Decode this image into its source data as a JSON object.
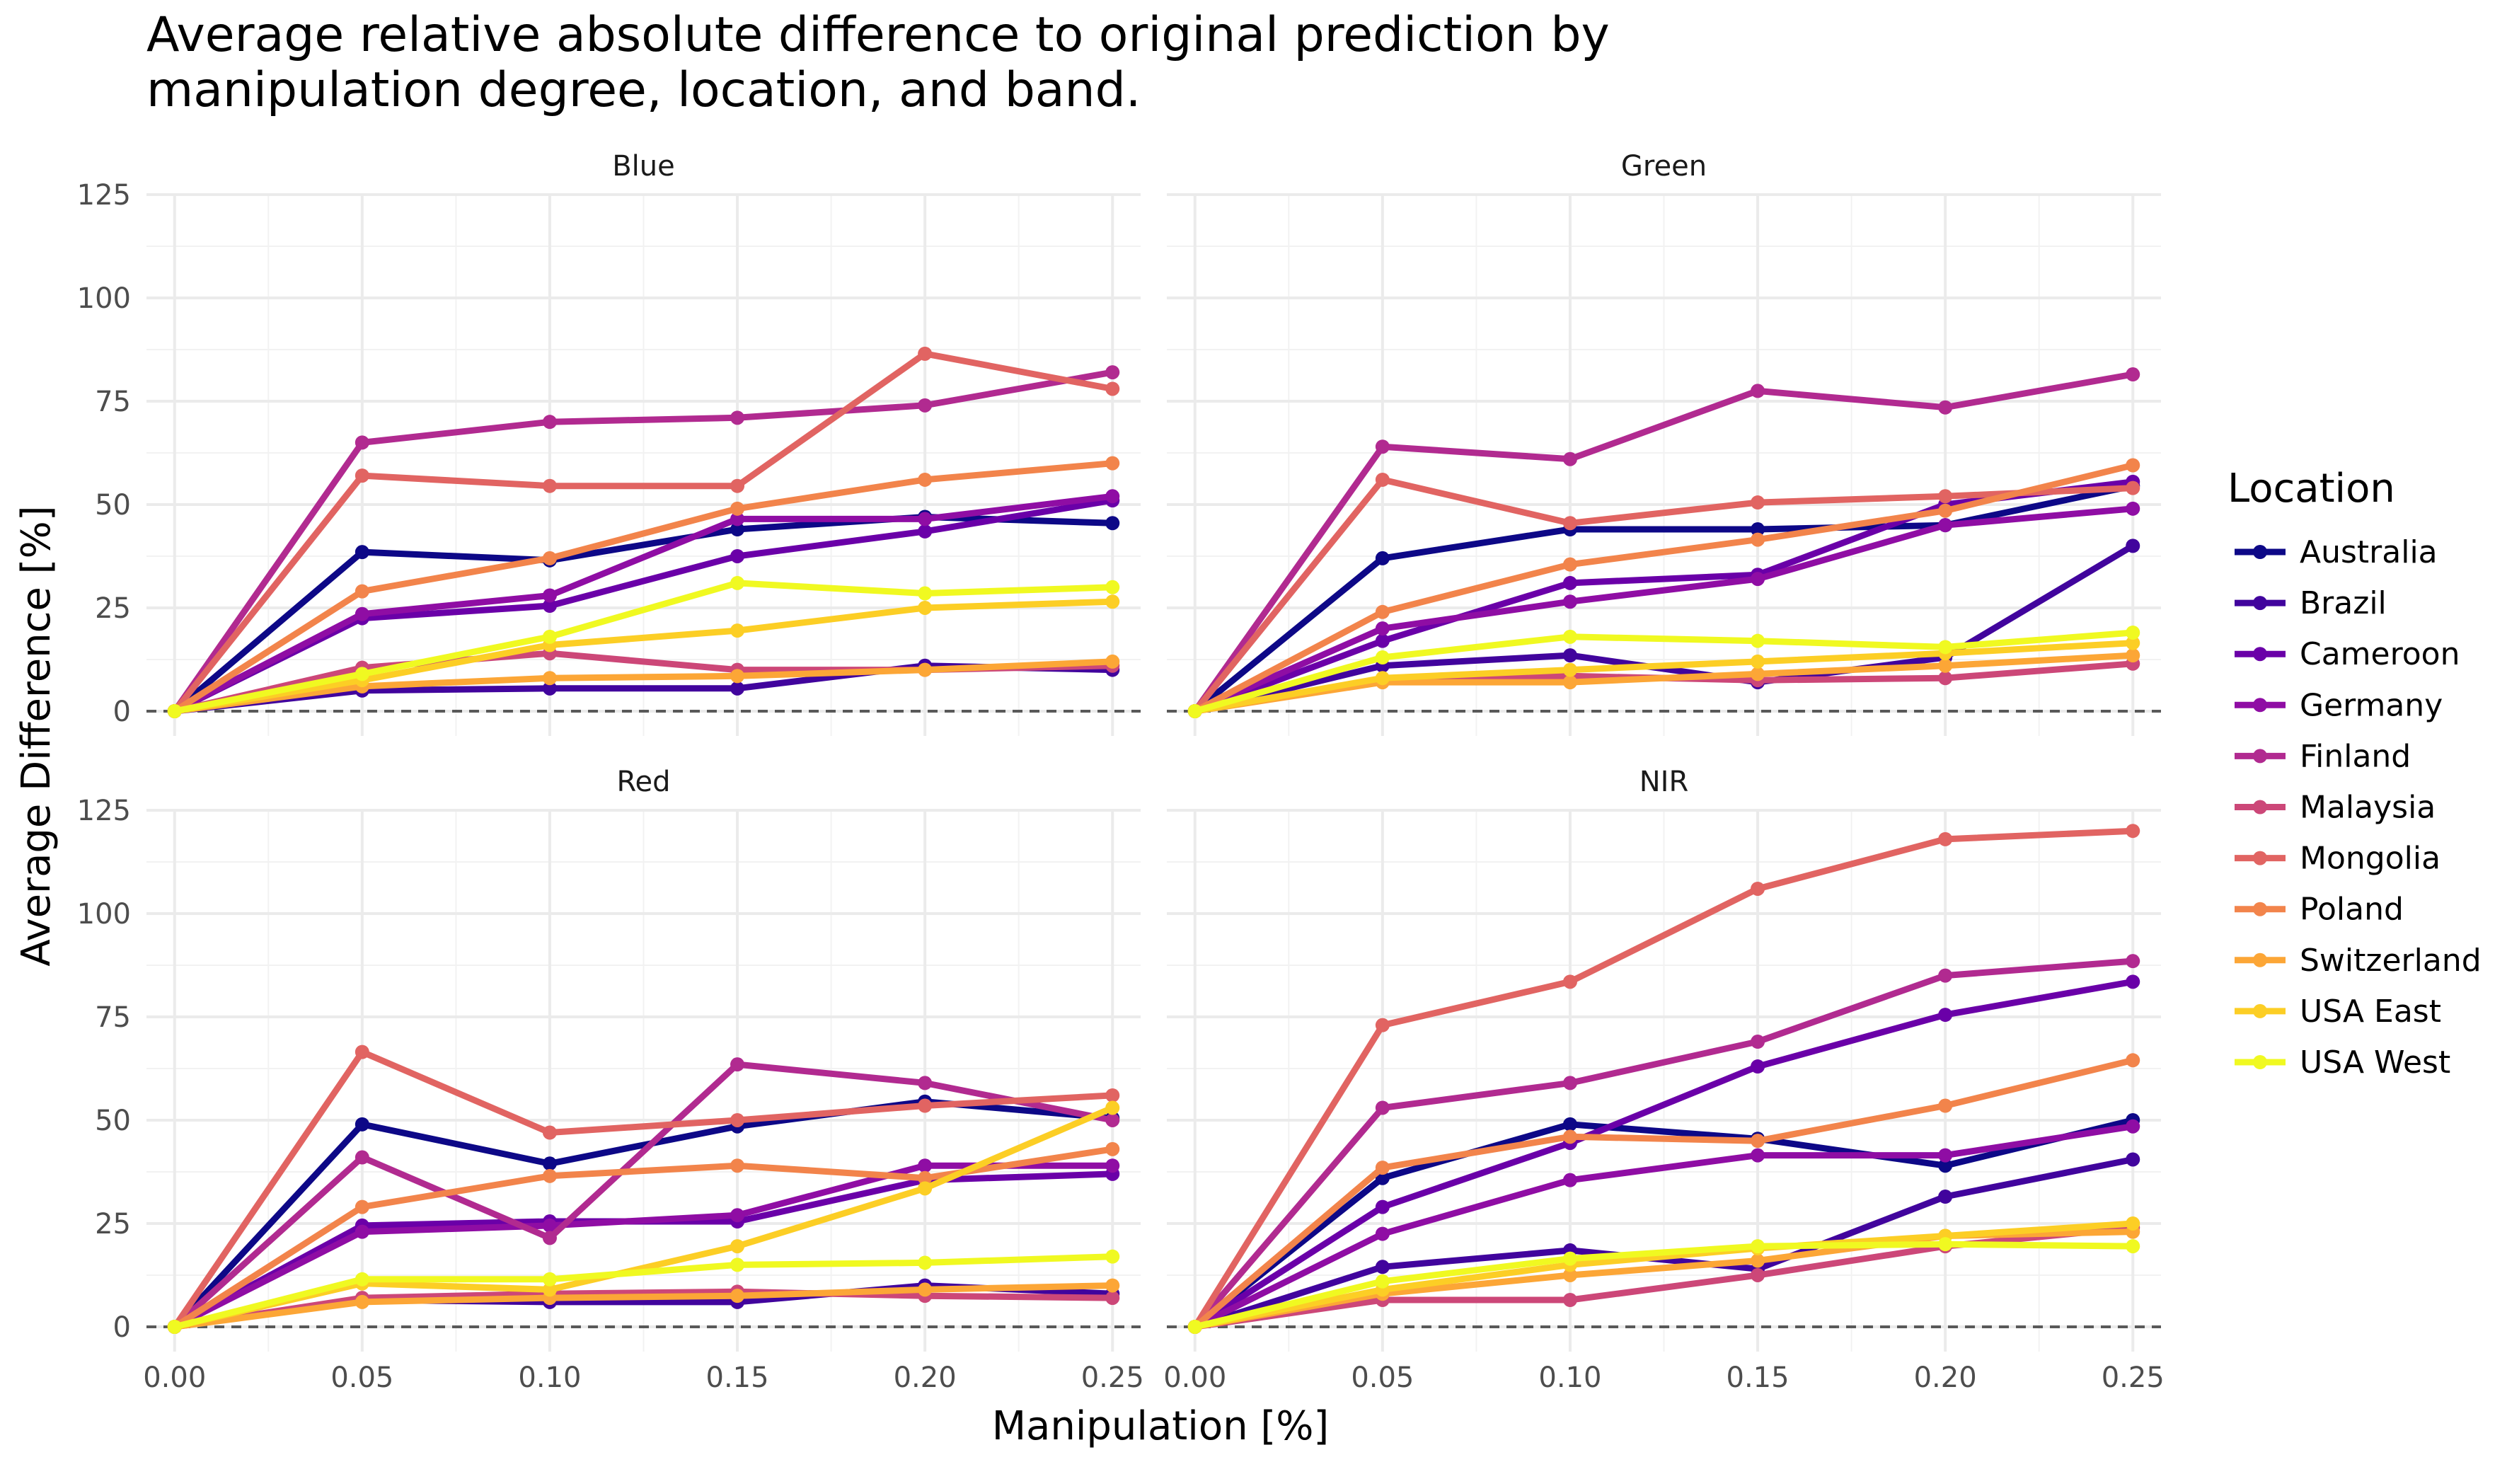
{
  "chart_data": {
    "type": "line",
    "title": "Average relative absolute difference to original prediction by manipulation degree, location, and band.",
    "title_lines": [
      "Average relative absolute difference to original prediction by",
      "manipulation degree, location, and band."
    ],
    "xlabel": "Manipulation [%]",
    "ylabel": "Average Difference [%]",
    "xlim": [
      -0.0075,
      0.2575
    ],
    "ylim": [
      -6,
      125
    ],
    "x_ticks": [
      0,
      0.05,
      0.1,
      0.15,
      0.2,
      0.25
    ],
    "x_tick_labels": [
      "0.00",
      "0.05",
      "0.10",
      "0.15",
      "0.20",
      "0.25"
    ],
    "y_ticks": [
      0,
      25,
      50,
      75,
      100,
      125
    ],
    "y_tick_labels": [
      "0",
      "25",
      "50",
      "75",
      "100",
      "125"
    ],
    "grid": true,
    "reference_line": {
      "y": 0,
      "style": "dashed",
      "color": "#595959"
    },
    "legend": {
      "title": "Location",
      "position": "right"
    },
    "x": [
      0,
      0.05,
      0.1,
      0.15,
      0.2,
      0.25
    ],
    "series_names": [
      "Australia",
      "Brazil",
      "Cameroon",
      "Germany",
      "Finland",
      "Malaysia",
      "Mongolia",
      "Poland",
      "Switzerland",
      "USA East",
      "USA West"
    ],
    "colors": [
      "#0d0887",
      "#41049d",
      "#6a00a8",
      "#8f0da4",
      "#b12a90",
      "#cc4778",
      "#e16462",
      "#f2844b",
      "#fca636",
      "#fcce25",
      "#f0f921"
    ],
    "panels": [
      {
        "name": "Blue",
        "series": [
          {
            "name": "Australia",
            "values": [
              0,
              38.5,
              36.5,
              44,
              47,
              45.5
            ]
          },
          {
            "name": "Brazil",
            "values": [
              0,
              5,
              5.5,
              5.5,
              11,
              10
            ]
          },
          {
            "name": "Cameroon",
            "values": [
              0,
              22.5,
              25.5,
              37.5,
              43.5,
              51
            ]
          },
          {
            "name": "Germany",
            "values": [
              0,
              23.5,
              28,
              46.5,
              46.5,
              52
            ]
          },
          {
            "name": "Finland",
            "values": [
              0,
              65,
              70,
              71,
              74,
              82
            ]
          },
          {
            "name": "Malaysia",
            "values": [
              0,
              10.5,
              14,
              10,
              10,
              11
            ]
          },
          {
            "name": "Mongolia",
            "values": [
              0,
              57,
              54.5,
              54.5,
              86.5,
              78
            ]
          },
          {
            "name": "Poland",
            "values": [
              0,
              29,
              37,
              49,
              56,
              60
            ]
          },
          {
            "name": "Switzerland",
            "values": [
              0,
              6,
              8,
              8.5,
              10,
              12
            ]
          },
          {
            "name": "USA East",
            "values": [
              0,
              7.5,
              16,
              19.5,
              25,
              26.5
            ]
          },
          {
            "name": "USA West",
            "values": [
              0,
              9,
              18,
              31,
              28.5,
              30
            ]
          }
        ]
      },
      {
        "name": "Green",
        "series": [
          {
            "name": "Australia",
            "values": [
              0,
              37,
              44,
              44,
              45,
              54.5
            ]
          },
          {
            "name": "Brazil",
            "values": [
              0,
              11,
              13.5,
              7,
              13,
              40
            ]
          },
          {
            "name": "Cameroon",
            "values": [
              0,
              17,
              31,
              33,
              50,
              55.5
            ]
          },
          {
            "name": "Germany",
            "values": [
              0,
              20,
              26.5,
              32,
              45,
              49
            ]
          },
          {
            "name": "Finland",
            "values": [
              0,
              64,
              61,
              77.5,
              73.5,
              81.5
            ]
          },
          {
            "name": "Malaysia",
            "values": [
              0,
              7.5,
              8.5,
              7.5,
              8,
              11.5
            ]
          },
          {
            "name": "Mongolia",
            "values": [
              0,
              56,
              45.5,
              50.5,
              52,
              54
            ]
          },
          {
            "name": "Poland",
            "values": [
              0,
              24,
              35.5,
              41.5,
              48.5,
              59.5
            ]
          },
          {
            "name": "Switzerland",
            "values": [
              0,
              7,
              7,
              9,
              11,
              13.5
            ]
          },
          {
            "name": "USA East",
            "values": [
              0,
              8,
              10,
              12,
              14,
              16.5
            ]
          },
          {
            "name": "USA West",
            "values": [
              0,
              13,
              18,
              17,
              15.5,
              19
            ]
          }
        ]
      },
      {
        "name": "Red",
        "series": [
          {
            "name": "Australia",
            "values": [
              0,
              49,
              39.5,
              48.5,
              54.5,
              50.5
            ]
          },
          {
            "name": "Brazil",
            "values": [
              0,
              6.5,
              6,
              6,
              10,
              8
            ]
          },
          {
            "name": "Cameroon",
            "values": [
              0,
              24.5,
              25.5,
              25.5,
              35.5,
              37
            ]
          },
          {
            "name": "Germany",
            "values": [
              0,
              23,
              24.5,
              27,
              39,
              39
            ]
          },
          {
            "name": "Finland",
            "values": [
              0,
              41,
              21.5,
              63.5,
              59,
              50
            ]
          },
          {
            "name": "Malaysia",
            "values": [
              0,
              7,
              8,
              8.5,
              7.5,
              7
            ]
          },
          {
            "name": "Mongolia",
            "values": [
              0,
              66.5,
              47,
              50,
              53.5,
              56
            ]
          },
          {
            "name": "Poland",
            "values": [
              0,
              29,
              36.5,
              39,
              36,
              43
            ]
          },
          {
            "name": "Switzerland",
            "values": [
              0,
              6,
              7,
              7.5,
              9,
              10
            ]
          },
          {
            "name": "USA East",
            "values": [
              0,
              10.5,
              9,
              19.5,
              33.5,
              53
            ]
          },
          {
            "name": "USA West",
            "values": [
              0,
              11.5,
              11.5,
              15,
              15.5,
              17
            ]
          }
        ]
      },
      {
        "name": "NIR",
        "series": [
          {
            "name": "Australia",
            "values": [
              0,
              36,
              49,
              45.5,
              39,
              50
            ]
          },
          {
            "name": "Brazil",
            "values": [
              0,
              14.5,
              18.5,
              14,
              31.5,
              40.5
            ]
          },
          {
            "name": "Cameroon",
            "values": [
              0,
              29,
              44.5,
              63,
              75.5,
              83.5
            ]
          },
          {
            "name": "Germany",
            "values": [
              0,
              22.5,
              35.5,
              41.5,
              41.5,
              48.5
            ]
          },
          {
            "name": "Finland",
            "values": [
              0,
              53,
              59,
              69,
              85,
              88.5
            ]
          },
          {
            "name": "Malaysia",
            "values": [
              0,
              6.5,
              6.5,
              12.5,
              19.5,
              24
            ]
          },
          {
            "name": "Mongolia",
            "values": [
              0,
              73,
              83.5,
              106,
              118,
              120
            ]
          },
          {
            "name": "Poland",
            "values": [
              0,
              38.5,
              46,
              45,
              53.5,
              64.5
            ]
          },
          {
            "name": "Switzerland",
            "values": [
              0,
              8,
              12.5,
              16,
              22,
              23
            ]
          },
          {
            "name": "USA East",
            "values": [
              0,
              9,
              15,
              19,
              22,
              25
            ]
          },
          {
            "name": "USA West",
            "values": [
              0,
              11,
              16.5,
              19.5,
              20,
              19.5
            ]
          }
        ]
      }
    ]
  }
}
